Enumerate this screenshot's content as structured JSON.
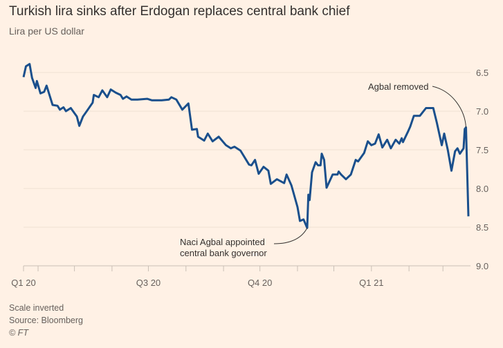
{
  "title": "Turkish lira sinks after Erdogan replaces central bank chief",
  "subtitle": "Lira per US dollar",
  "footer": {
    "note": "Scale inverted",
    "source": "Source: Bloomberg",
    "credit": "© FT"
  },
  "chart_data": {
    "type": "line",
    "title": "Turkish lira sinks after Erdogan replaces central bank chief",
    "ylabel": "Lira per US dollar",
    "xlabel": "",
    "y_inverted": true,
    "ylim": [
      6.5,
      9.0
    ],
    "y_ticks": [
      "6.5",
      "7.0",
      "7.5",
      "8.0",
      "8.5",
      "9.0"
    ],
    "x_range": [
      "2020-03-20",
      "2021-03-22"
    ],
    "x_tick_labels": [
      {
        "label": "Q1 20",
        "date": "2020-03-20"
      },
      {
        "label": "Q3 20",
        "date": "2020-07-01"
      },
      {
        "label": "Q4 20",
        "date": "2020-10-01"
      },
      {
        "label": "Q1 21",
        "date": "2021-01-01"
      }
    ],
    "grid": true,
    "line_color": "#1a4f8c",
    "annotations": [
      {
        "text": [
          "Naci Agbal appointed",
          "central bank governor"
        ],
        "date": "2020-11-09",
        "value": 8.51
      },
      {
        "text": [
          "Agbal removed"
        ],
        "date": "2021-03-20",
        "value": 7.21
      }
    ],
    "series": [
      {
        "x": [
          "2020-03-20",
          "2020-03-22",
          "2020-03-25",
          "2020-03-27",
          "2020-03-30",
          "2020-03-31",
          "2020-04-03",
          "2020-04-06",
          "2020-04-08",
          "2020-04-13",
          "2020-04-17",
          "2020-04-19",
          "2020-04-22",
          "2020-04-24",
          "2020-04-28",
          "2020-05-03",
          "2020-05-05",
          "2020-05-08",
          "2020-05-12",
          "2020-05-16",
          "2020-05-17",
          "2020-05-21",
          "2020-05-24",
          "2020-05-28",
          "2020-05-31",
          "2020-06-04",
          "2020-06-08",
          "2020-06-10",
          "2020-06-13",
          "2020-06-17",
          "2020-06-22",
          "2020-06-30",
          "2020-07-04",
          "2020-07-12",
          "2020-07-18",
          "2020-07-20",
          "2020-07-24",
          "2020-07-29",
          "2020-08-03",
          "2020-08-06",
          "2020-08-10",
          "2020-08-11",
          "2020-08-16",
          "2020-08-19",
          "2020-08-23",
          "2020-08-28",
          "2020-09-03",
          "2020-09-07",
          "2020-09-10",
          "2020-09-15",
          "2020-09-22",
          "2020-09-24",
          "2020-09-27",
          "2020-09-30",
          "2020-10-04",
          "2020-10-08",
          "2020-10-10",
          "2020-10-15",
          "2020-10-21",
          "2020-10-23",
          "2020-10-27",
          "2020-11-01",
          "2020-11-03",
          "2020-11-06",
          "2020-11-09",
          "2020-11-10",
          "2020-11-11",
          "2020-11-13",
          "2020-11-16",
          "2020-11-18",
          "2020-11-20",
          "2020-11-21",
          "2020-11-23",
          "2020-11-25",
          "2020-11-30",
          "2020-12-04",
          "2020-12-05",
          "2020-12-07",
          "2020-12-11",
          "2020-12-15",
          "2020-12-19",
          "2020-12-21",
          "2020-12-26",
          "2020-12-29",
          "2021-01-01",
          "2021-01-04",
          "2021-01-07",
          "2021-01-10",
          "2021-01-14",
          "2021-01-17",
          "2021-01-21",
          "2021-01-24",
          "2021-01-26",
          "2021-01-27",
          "2021-01-31",
          "2021-02-02",
          "2021-02-05",
          "2021-02-10",
          "2021-02-15",
          "2021-02-21",
          "2021-02-24",
          "2021-02-28",
          "2021-03-02",
          "2021-03-05",
          "2021-03-08",
          "2021-03-11",
          "2021-03-13",
          "2021-03-15",
          "2021-03-18",
          "2021-03-19",
          "2021-03-20",
          "2021-03-22"
        ],
        "values": [
          6.56,
          6.42,
          6.39,
          6.57,
          6.7,
          6.61,
          6.77,
          6.75,
          6.67,
          6.92,
          6.93,
          6.98,
          6.95,
          7.0,
          6.96,
          7.07,
          7.19,
          7.07,
          6.98,
          6.89,
          6.79,
          6.82,
          6.73,
          6.82,
          6.72,
          6.76,
          6.79,
          6.84,
          6.81,
          6.85,
          6.85,
          6.84,
          6.86,
          6.86,
          6.85,
          6.82,
          6.85,
          6.98,
          6.9,
          7.24,
          7.23,
          7.33,
          7.38,
          7.29,
          7.39,
          7.33,
          7.44,
          7.48,
          7.46,
          7.51,
          7.69,
          7.7,
          7.63,
          7.81,
          7.72,
          7.77,
          7.94,
          7.88,
          7.93,
          7.82,
          7.96,
          8.24,
          8.42,
          8.4,
          8.51,
          8.08,
          8.15,
          7.79,
          7.66,
          7.7,
          7.7,
          7.55,
          7.63,
          7.99,
          7.82,
          7.82,
          7.78,
          7.82,
          7.88,
          7.82,
          7.63,
          7.65,
          7.54,
          7.39,
          7.44,
          7.42,
          7.3,
          7.47,
          7.37,
          7.48,
          7.37,
          7.42,
          7.35,
          7.4,
          7.27,
          7.2,
          7.06,
          7.06,
          6.96,
          6.96,
          7.15,
          7.44,
          7.29,
          7.5,
          7.77,
          7.52,
          7.48,
          7.55,
          7.48,
          7.23,
          7.21,
          8.36
        ]
      }
    ]
  }
}
